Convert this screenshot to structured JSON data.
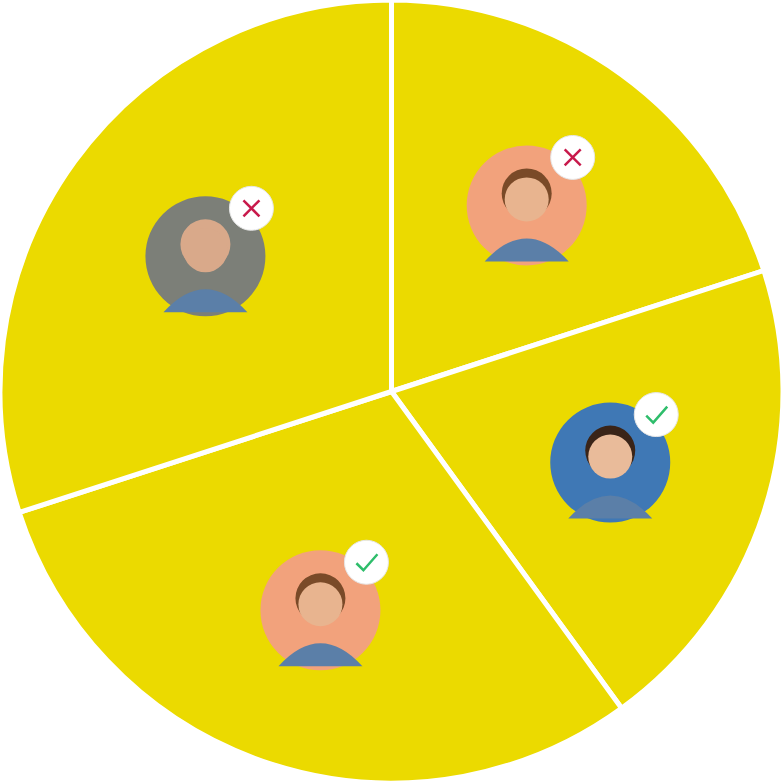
{
  "chart_data": {
    "type": "pie",
    "values": [
      20,
      20,
      30,
      30
    ],
    "color": "#ebda00",
    "tick_labels": false
  }
}
